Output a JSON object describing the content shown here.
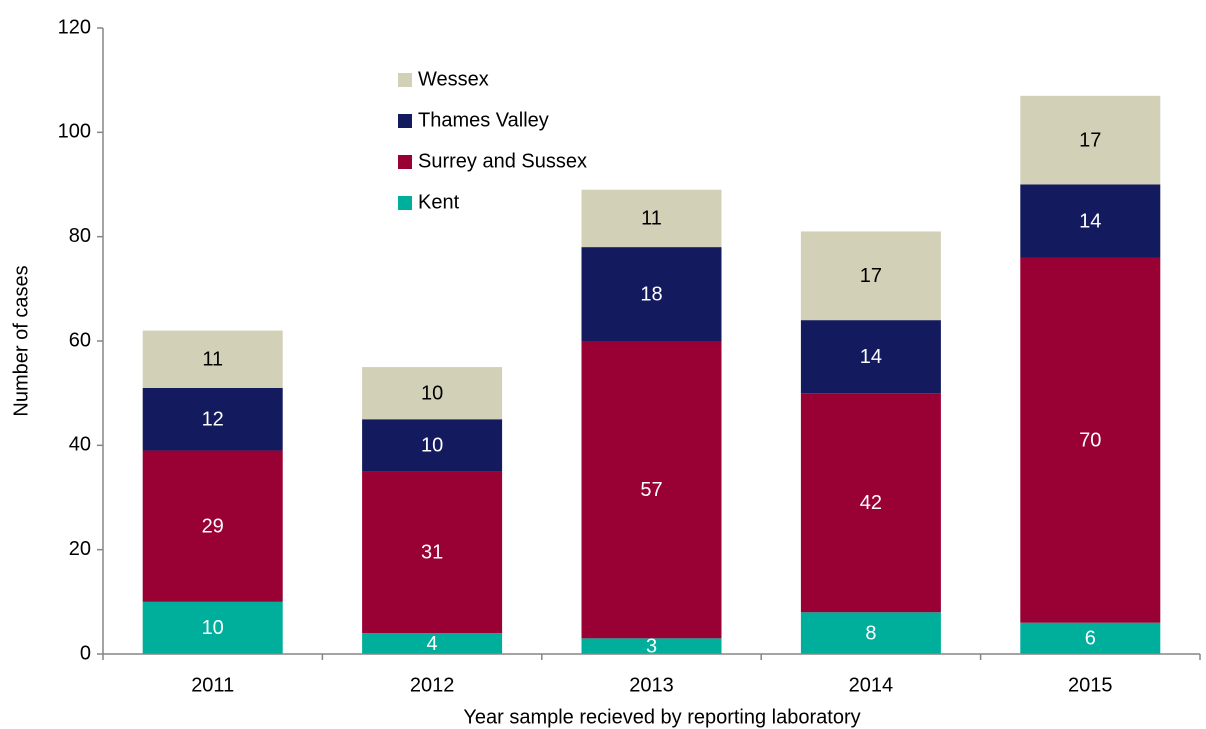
{
  "chart_data": {
    "type": "stacked_bar",
    "xlabel": "Year sample recieved by reporting laboratory",
    "ylabel": "Number of cases",
    "categories": [
      "2011",
      "2012",
      "2013",
      "2014",
      "2015"
    ],
    "series": [
      {
        "name": "Kent",
        "color": "#00ae9c",
        "label_color": "#ffffff",
        "values": [
          10,
          4,
          3,
          8,
          6
        ]
      },
      {
        "name": "Surrey and Sussex",
        "color": "#990033",
        "label_color": "#ffffff",
        "values": [
          29,
          31,
          57,
          42,
          70
        ]
      },
      {
        "name": "Thames Valley",
        "color": "#141a5e",
        "label_color": "#ffffff",
        "values": [
          12,
          10,
          18,
          14,
          14
        ]
      },
      {
        "name": "Wessex",
        "color": "#d3d0b8",
        "label_color": "#000000",
        "values": [
          11,
          10,
          11,
          17,
          17
        ]
      }
    ],
    "ylim": [
      0,
      120
    ],
    "yticks": [
      0,
      20,
      40,
      60,
      80,
      100,
      120
    ],
    "legend": "upper left"
  }
}
